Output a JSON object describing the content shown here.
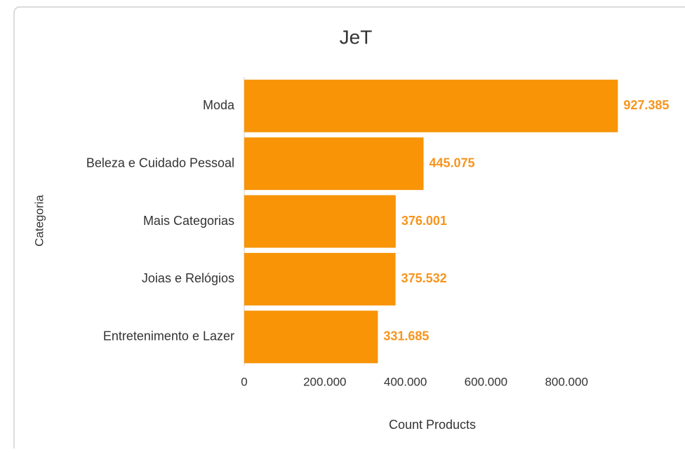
{
  "chart_data": {
    "type": "bar",
    "orientation": "horizontal",
    "title": "JeT",
    "x_label": "Count Products",
    "y_label": "Categoria",
    "categories": [
      "Moda",
      "Beleza e Cuidado Pessoal",
      "Mais Categorias",
      "Joias e Relógios",
      "Entretenimento e Lazer"
    ],
    "values": [
      927385,
      445075,
      376001,
      375532,
      331685
    ],
    "value_labels": [
      "927.385",
      "445.075",
      "376.001",
      "375.532",
      "331.685"
    ],
    "color": "#f89406",
    "xlim": [
      0,
      1000000
    ],
    "xticks": [
      0,
      {
        "value": 200000,
        "label": "200.000"
      },
      {
        "value": 400000,
        "label": "400.000"
      },
      {
        "value": 600000,
        "label": "600.000"
      },
      {
        "value": 800000,
        "label": "800.000"
      }
    ],
    "grid": false
  }
}
